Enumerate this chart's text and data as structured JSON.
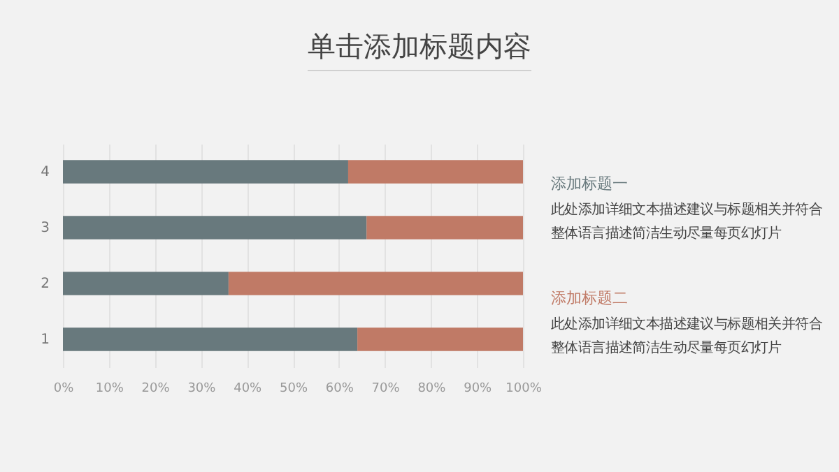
{
  "chart_data": {
    "type": "bar",
    "orientation": "horizontal",
    "stacked": true,
    "title": "单击添加标题内容",
    "categories": [
      "4",
      "3",
      "2",
      "1"
    ],
    "series": [
      {
        "name": "添加标题一",
        "color": "#68797d",
        "values": [
          62,
          66,
          36,
          64
        ]
      },
      {
        "name": "添加标题二",
        "color": "#c07a66",
        "values": [
          38,
          34,
          64,
          36
        ]
      }
    ],
    "xlim": [
      0,
      100
    ],
    "xticks": [
      {
        "value": 0,
        "label": "0%"
      },
      {
        "value": 10,
        "label": "10%"
      },
      {
        "value": 20,
        "label": "20%"
      },
      {
        "value": 30,
        "label": "30%"
      },
      {
        "value": 40,
        "label": "40%"
      },
      {
        "value": 50,
        "label": "50%"
      },
      {
        "value": 60,
        "label": "60%"
      },
      {
        "value": 70,
        "label": "70%"
      },
      {
        "value": 80,
        "label": "80%"
      },
      {
        "value": 90,
        "label": "90%"
      },
      {
        "value": 100,
        "label": "100%"
      }
    ],
    "grid": "x",
    "legend": "right",
    "annotations": [
      "此处添加详细文本描述建议与标题相关并符合",
      "整体语言描述简洁生动尽量每页幻灯片",
      "此处添加详细文本描述建议与标题相关并符合",
      "整体语言描述简洁生动尽量每页幻灯片"
    ]
  }
}
